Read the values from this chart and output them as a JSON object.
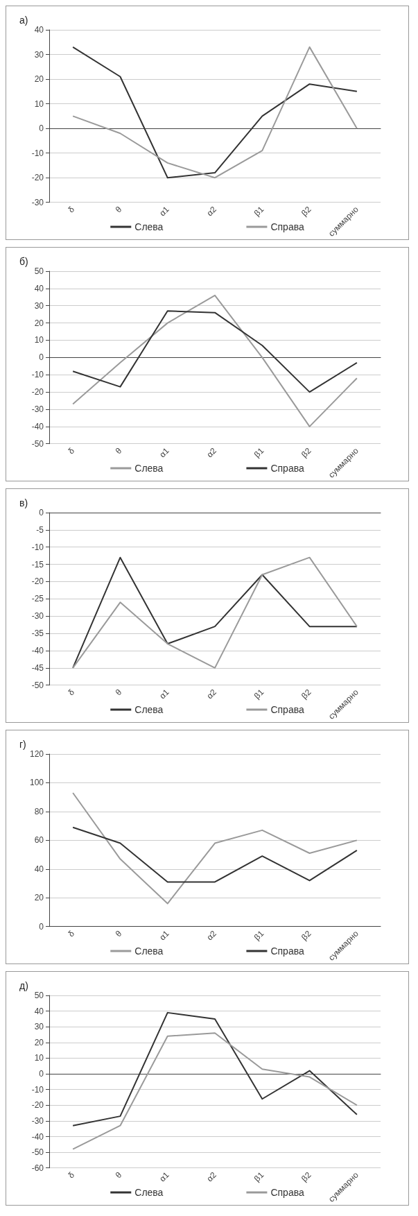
{
  "chart_data": [
    {
      "type": "line",
      "title": "а)",
      "categories": [
        "δ",
        "θ",
        "α1",
        "α2",
        "β1",
        "β2",
        "суммарно"
      ],
      "ylim": [
        -30,
        40
      ],
      "yticks": [
        -30,
        -20,
        -10,
        0,
        10,
        20,
        30,
        40
      ],
      "grid": "y",
      "legend": "bottom",
      "marker": "none",
      "series": [
        {
          "name": "Слева",
          "color": "#333333",
          "values": [
            33,
            21,
            -20,
            -18,
            5,
            18,
            15
          ]
        },
        {
          "name": "Справа",
          "color": "#9a9a9a",
          "values": [
            5,
            -2,
            -14,
            -20,
            -9,
            33,
            0
          ]
        }
      ]
    },
    {
      "type": "line",
      "title": "б)",
      "categories": [
        "δ",
        "θ",
        "α1",
        "α2",
        "β1",
        "β2",
        "суммарно"
      ],
      "ylim": [
        -50,
        50
      ],
      "yticks": [
        -50,
        -40,
        -30,
        -20,
        -10,
        0,
        10,
        20,
        30,
        40,
        50
      ],
      "grid": "y",
      "legend": "bottom",
      "marker": "none",
      "series": [
        {
          "name": "Слева",
          "color": "#9a9a9a",
          "values": [
            -27,
            -3,
            20,
            36,
            0,
            -40,
            -12
          ]
        },
        {
          "name": "Справа",
          "color": "#333333",
          "values": [
            -8,
            -17,
            27,
            26,
            7,
            -20,
            -3
          ]
        }
      ]
    },
    {
      "type": "line",
      "title": "в)",
      "categories": [
        "δ",
        "θ",
        "α1",
        "α2",
        "β1",
        "β2",
        "суммарно"
      ],
      "ylim": [
        -50,
        0
      ],
      "yticks": [
        -50,
        -45,
        -40,
        -35,
        -30,
        -25,
        -20,
        -15,
        -10,
        -5,
        0
      ],
      "grid": "y",
      "legend": "bottom",
      "marker": "none",
      "series": [
        {
          "name": "Слева",
          "color": "#333333",
          "values": [
            -45,
            -13,
            -38,
            -33,
            -18,
            -33,
            -33
          ]
        },
        {
          "name": "Справа",
          "color": "#9a9a9a",
          "values": [
            -45,
            -26,
            -38,
            -45,
            -18,
            -13,
            -33
          ]
        }
      ]
    },
    {
      "type": "line",
      "title": "г)",
      "categories": [
        "δ",
        "θ",
        "α1",
        "α2",
        "β1",
        "β2",
        "суммарно"
      ],
      "ylim": [
        0,
        120
      ],
      "yticks": [
        0,
        20,
        40,
        60,
        80,
        100,
        120
      ],
      "grid": "y",
      "legend": "bottom",
      "marker": "none",
      "series": [
        {
          "name": "Слева",
          "color": "#9a9a9a",
          "values": [
            93,
            47,
            16,
            58,
            67,
            51,
            60
          ]
        },
        {
          "name": "Справа",
          "color": "#333333",
          "values": [
            69,
            58,
            31,
            31,
            49,
            32,
            53
          ]
        }
      ]
    },
    {
      "type": "line",
      "title": "д)",
      "categories": [
        "δ",
        "θ",
        "α1",
        "α2",
        "β1",
        "β2",
        "суммарно"
      ],
      "ylim": [
        -60,
        50
      ],
      "yticks": [
        -60,
        -50,
        -40,
        -30,
        -20,
        -10,
        0,
        10,
        20,
        30,
        40,
        50
      ],
      "grid": "y",
      "legend": "bottom",
      "marker": "none",
      "series": [
        {
          "name": "Слева",
          "color": "#333333",
          "values": [
            -33,
            -27,
            39,
            35,
            -16,
            2,
            -26
          ]
        },
        {
          "name": "Справа",
          "color": "#9a9a9a",
          "values": [
            -48,
            -33,
            24,
            26,
            3,
            -2,
            -20
          ]
        }
      ]
    }
  ]
}
